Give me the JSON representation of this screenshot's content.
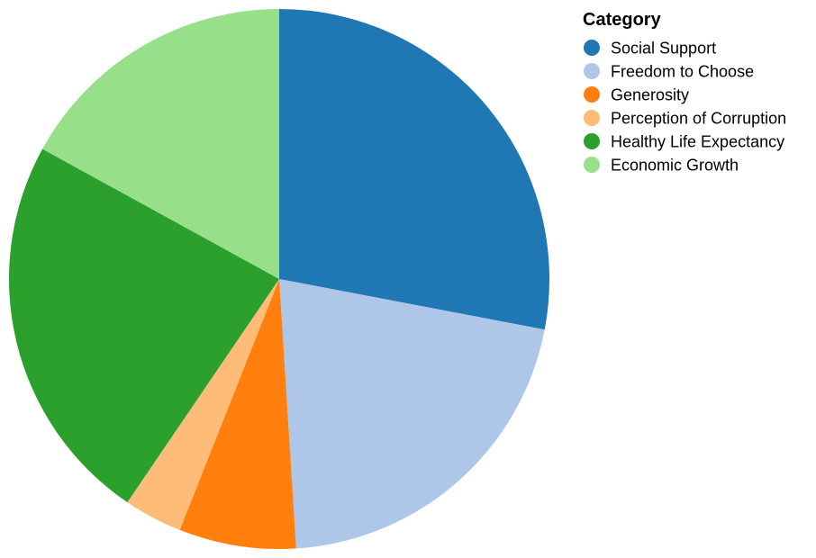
{
  "chart_data": {
    "type": "pie",
    "legend": {
      "title": "Category",
      "placement": "top-right"
    },
    "slices": [
      {
        "label": "Social Support",
        "value": 28.0,
        "color": "#1f77b4"
      },
      {
        "label": "Freedom to Choose",
        "value": 21.0,
        "color": "#aec7e8"
      },
      {
        "label": "Generosity",
        "value": 7.0,
        "color": "#ff7f0e"
      },
      {
        "label": "Perception of Corruption",
        "value": 3.5,
        "color": "#ffbb78"
      },
      {
        "label": "Healthy Life Expectancy",
        "value": 23.5,
        "color": "#2ca02c"
      },
      {
        "label": "Economic Growth",
        "value": 17.0,
        "color": "#98df8a"
      }
    ]
  }
}
